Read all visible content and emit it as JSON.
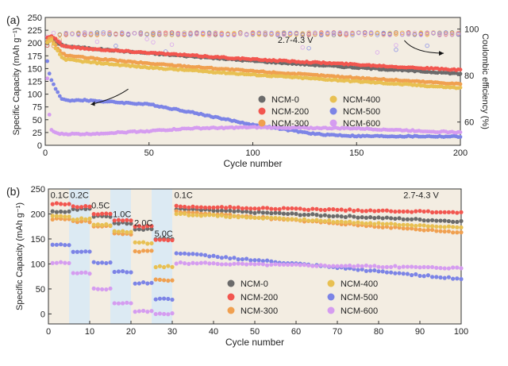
{
  "figure": {
    "background_color": "#ffffff"
  },
  "chart_data": [
    {
      "panel_label": "(a)",
      "type": "scatter",
      "background_color": "#f3ede2",
      "xlabel": "Cycle number",
      "ylabel": "Specific Capacity (mAh g⁻¹)",
      "y2label": "Coulombic efficiency (%)",
      "xlim": [
        0,
        200
      ],
      "ylim": [
        0,
        250
      ],
      "y2lim": [
        50,
        105
      ],
      "xticks": [
        0,
        50,
        100,
        150,
        200
      ],
      "yticks": [
        0,
        25,
        50,
        75,
        100,
        125,
        150,
        175,
        200,
        225,
        250
      ],
      "y2ticks": [
        60,
        80,
        100
      ],
      "voltage_label": "2.7-4.3 V",
      "legend": {
        "placement": "center-right",
        "columns": 2,
        "order": [
          "NCM-0",
          "NCM-400",
          "NCM-200",
          "NCM-500",
          "NCM-300",
          "NCM-600"
        ]
      },
      "series": [
        {
          "name": "NCM-0",
          "color": "#6b6b6b",
          "x": [
            1,
            2,
            3,
            5,
            8,
            10,
            20,
            50,
            100,
            150,
            200
          ],
          "y": [
            200,
            205,
            208,
            200,
            196,
            194,
            190,
            180,
            165,
            152,
            140
          ]
        },
        {
          "name": "NCM-200",
          "color": "#f2564f",
          "x": [
            1,
            2,
            3,
            5,
            8,
            10,
            20,
            50,
            100,
            150,
            200
          ],
          "y": [
            210,
            213,
            214,
            208,
            196,
            193,
            189,
            181,
            168,
            158,
            147
          ]
        },
        {
          "name": "NCM-300",
          "color": "#f0a050",
          "x": [
            1,
            2,
            3,
            5,
            8,
            10,
            20,
            50,
            100,
            150,
            200
          ],
          "y": [
            205,
            208,
            210,
            195,
            180,
            176,
            171,
            160,
            145,
            132,
            120
          ]
        },
        {
          "name": "NCM-400",
          "color": "#e8c052",
          "x": [
            1,
            2,
            3,
            5,
            8,
            10,
            20,
            50,
            100,
            150,
            200
          ],
          "y": [
            200,
            203,
            205,
            190,
            172,
            168,
            163,
            152,
            138,
            125,
            112
          ]
        },
        {
          "name": "NCM-500",
          "color": "#7c84e6",
          "x": [
            1,
            2,
            3,
            5,
            8,
            10,
            20,
            50,
            70,
            100,
            130,
            150,
            200
          ],
          "y": [
            165,
            140,
            128,
            110,
            90,
            88,
            88,
            80,
            65,
            40,
            22,
            18,
            17
          ]
        },
        {
          "name": "NCM-600",
          "color": "#d59cf0",
          "x": [
            1,
            2,
            3,
            5,
            8,
            10,
            20,
            50,
            70,
            100,
            150,
            200
          ],
          "y": [
            130,
            60,
            30,
            24,
            22,
            22,
            22,
            28,
            33,
            35,
            33,
            25
          ]
        }
      ],
      "ce_level": 98,
      "annotations": [
        {
          "type": "arrow",
          "target": "capacity-axis"
        },
        {
          "type": "arrow",
          "target": "efficiency-axis"
        }
      ]
    },
    {
      "panel_label": "(b)",
      "type": "scatter",
      "background_color": "#f3ede2",
      "band_color": "#dceaf3",
      "xlabel": "Cycle number",
      "ylabel": "Specific Capacity (mAh g⁻¹)",
      "xlim": [
        0,
        100
      ],
      "ylim": [
        -20,
        250
      ],
      "xticks": [
        0,
        10,
        20,
        30,
        40,
        50,
        60,
        70,
        80,
        90,
        100
      ],
      "yticks": [
        0,
        50,
        100,
        150,
        200,
        250
      ],
      "voltage_label": "2.7-4.3 V",
      "rate_labels": [
        {
          "text": "0.1C",
          "x": 0.5,
          "y": 232
        },
        {
          "text": "0.2C",
          "x": 5.3,
          "y": 232
        },
        {
          "text": "0.5C",
          "x": 10.4,
          "y": 211
        },
        {
          "text": "1.0C",
          "x": 15.6,
          "y": 194
        },
        {
          "text": "2.0C",
          "x": 20.8,
          "y": 176
        },
        {
          "text": "5.0C",
          "x": 25.7,
          "y": 155
        },
        {
          "text": "0.1C",
          "x": 30.5,
          "y": 232
        }
      ],
      "rate_bands": [
        [
          5,
          10
        ],
        [
          15,
          20
        ],
        [
          25,
          30
        ]
      ],
      "legend": {
        "placement": "bottom-center",
        "columns": 2,
        "order": [
          "NCM-0",
          "NCM-400",
          "NCM-200",
          "NCM-500",
          "NCM-300",
          "NCM-600"
        ]
      },
      "rate_step_cycles": [
        5,
        10,
        15,
        20,
        25,
        30
      ],
      "series": [
        {
          "name": "NCM-0",
          "color": "#6b6b6b",
          "steps": [
            205,
            210,
            195,
            182,
            170,
            150
          ],
          "recovery": [
            210,
            185
          ]
        },
        {
          "name": "NCM-200",
          "color": "#f2564f",
          "steps": [
            220,
            215,
            200,
            188,
            175,
            148
          ],
          "recovery": [
            215,
            203
          ]
        },
        {
          "name": "NCM-300",
          "color": "#f0a050",
          "steps": [
            190,
            185,
            175,
            160,
            125,
            68
          ],
          "recovery": [
            205,
            163
          ]
        },
        {
          "name": "NCM-400",
          "color": "#e8c052",
          "steps": [
            195,
            190,
            178,
            165,
            142,
            95
          ],
          "recovery": [
            200,
            173
          ]
        },
        {
          "name": "NCM-500",
          "color": "#7c84e6",
          "steps": [
            138,
            125,
            103,
            84,
            62,
            30
          ],
          "recovery": [
            122,
            70
          ]
        },
        {
          "name": "NCM-600",
          "color": "#d59cf0",
          "steps": [
            102,
            82,
            50,
            22,
            5,
            0
          ],
          "recovery": [
            102,
            92
          ]
        }
      ]
    }
  ]
}
